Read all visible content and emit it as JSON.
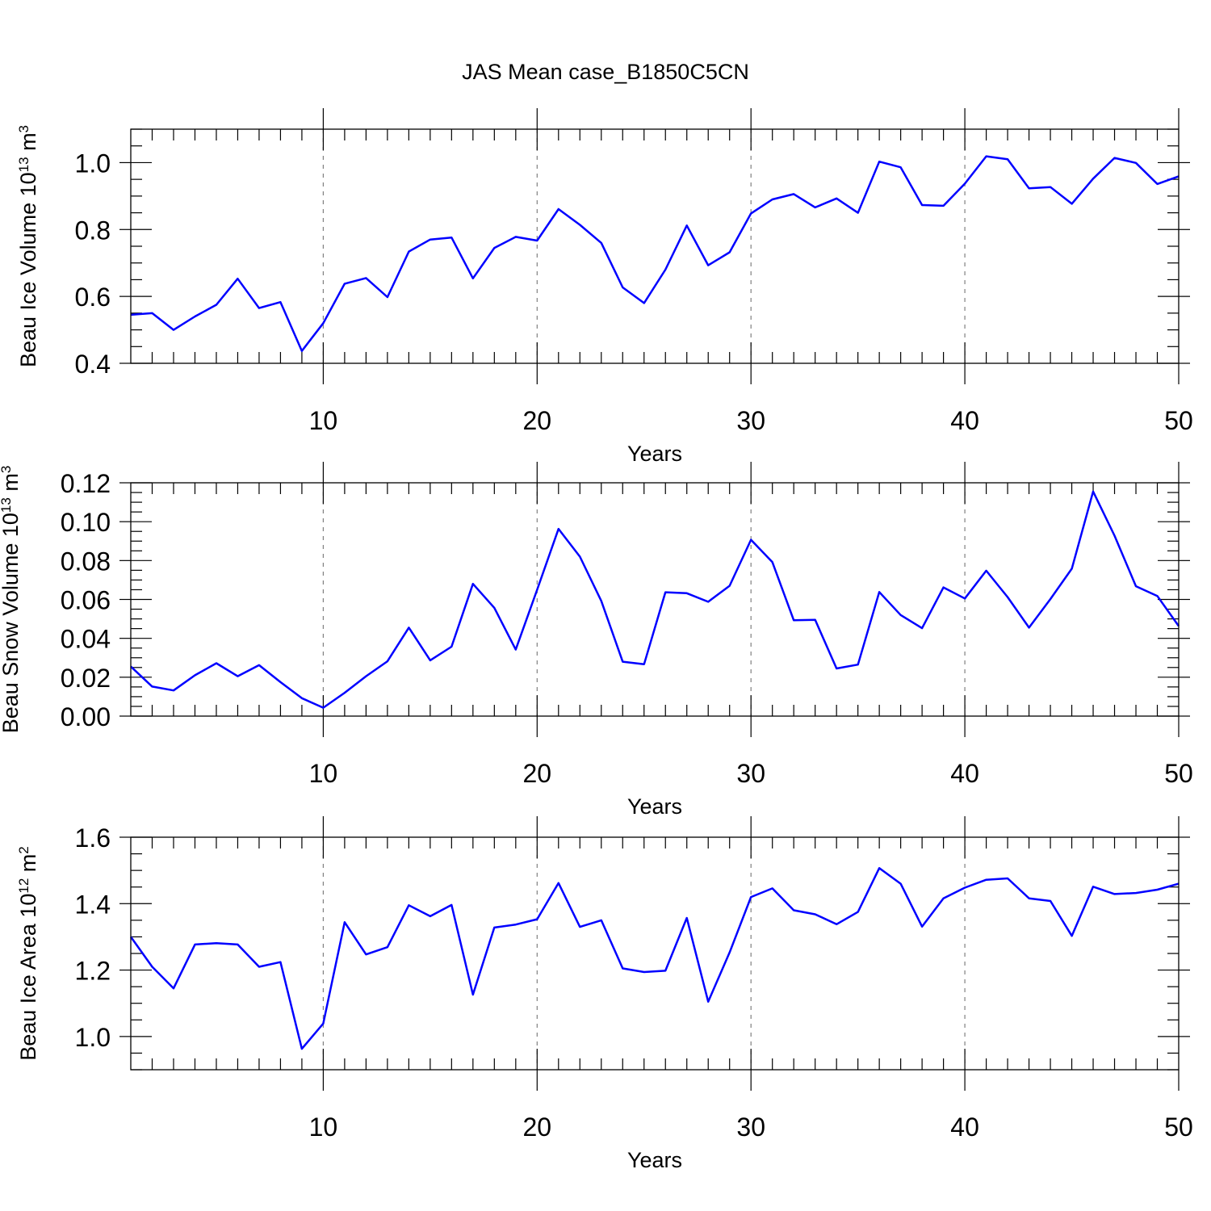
{
  "title": "JAS Mean case_B1850C5CN",
  "colors": {
    "line": "#0000ff",
    "axis": "#000000",
    "grid": "#808080"
  },
  "chart_data": [
    {
      "type": "line",
      "xlabel": "Years",
      "ylabel": "Beau Ice Volume 10",
      "ylabel_exp": "13",
      "ylabel_unit": " m",
      "ylabel_unit_exp": "3",
      "xlim": [
        1,
        50
      ],
      "ylim": [
        0.4,
        1.1
      ],
      "xticks": [
        10,
        20,
        30,
        40,
        50
      ],
      "xtick_labels": [
        "10",
        "20",
        "30",
        "40",
        "50"
      ],
      "yticks": [
        0.4,
        0.6,
        0.8,
        1.0
      ],
      "ytick_labels": [
        "0.4",
        "0.6",
        "0.8",
        "1.0"
      ],
      "yminor": 0.05,
      "grid_x": [
        10,
        20,
        30,
        40
      ],
      "x": [
        1,
        2,
        3,
        4,
        5,
        6,
        7,
        8,
        9,
        10,
        11,
        12,
        13,
        14,
        15,
        16,
        17,
        18,
        19,
        20,
        21,
        22,
        23,
        24,
        25,
        26,
        27,
        28,
        29,
        30,
        31,
        32,
        33,
        34,
        35,
        36,
        37,
        38,
        39,
        40,
        41,
        42,
        43,
        44,
        45,
        46,
        47,
        48,
        49,
        50
      ],
      "y": [
        0.545,
        0.55,
        0.5,
        0.54,
        0.575,
        0.653,
        0.565,
        0.583,
        0.437,
        0.52,
        0.638,
        0.655,
        0.598,
        0.734,
        0.77,
        0.776,
        0.654,
        0.745,
        0.778,
        0.767,
        0.861,
        0.814,
        0.76,
        0.627,
        0.58,
        0.68,
        0.812,
        0.693,
        0.732,
        0.848,
        0.89,
        0.906,
        0.866,
        0.893,
        0.85,
        1.003,
        0.986,
        0.873,
        0.871,
        0.937,
        1.019,
        1.01,
        0.923,
        0.927,
        0.877,
        0.952,
        1.014,
        0.999,
        0.936,
        0.959
      ]
    },
    {
      "type": "line",
      "xlabel": "Years",
      "ylabel": "Beau Snow Volume 10",
      "ylabel_exp": "13",
      "ylabel_unit": " m",
      "ylabel_unit_exp": "3",
      "xlim": [
        1,
        50
      ],
      "ylim": [
        0.0,
        0.12
      ],
      "xticks": [
        10,
        20,
        30,
        40,
        50
      ],
      "xtick_labels": [
        "10",
        "20",
        "30",
        "40",
        "50"
      ],
      "yticks": [
        0.0,
        0.02,
        0.04,
        0.06,
        0.08,
        0.1,
        0.12
      ],
      "ytick_labels": [
        "0.00",
        "0.02",
        "0.04",
        "0.06",
        "0.08",
        "0.10",
        "0.12"
      ],
      "yminor": 0.005,
      "grid_x": [
        10,
        20,
        30,
        40
      ],
      "x": [
        1,
        2,
        3,
        4,
        5,
        6,
        7,
        8,
        9,
        10,
        11,
        12,
        13,
        14,
        15,
        16,
        17,
        18,
        19,
        20,
        21,
        22,
        23,
        24,
        25,
        26,
        27,
        28,
        29,
        30,
        31,
        32,
        33,
        34,
        35,
        36,
        37,
        38,
        39,
        40,
        41,
        42,
        43,
        44,
        45,
        46,
        47,
        48,
        49,
        50
      ],
      "y": [
        0.0255,
        0.0152,
        0.0132,
        0.021,
        0.0272,
        0.0205,
        0.0262,
        0.0175,
        0.0092,
        0.0043,
        0.012,
        0.0205,
        0.0282,
        0.0455,
        0.0287,
        0.0357,
        0.068,
        0.0557,
        0.0342,
        0.065,
        0.0963,
        0.082,
        0.0592,
        0.028,
        0.0267,
        0.0637,
        0.0632,
        0.0588,
        0.067,
        0.0907,
        0.0792,
        0.0493,
        0.0495,
        0.0245,
        0.0265,
        0.0638,
        0.052,
        0.0452,
        0.0662,
        0.0605,
        0.0748,
        0.0612,
        0.0455,
        0.0602,
        0.0758,
        0.1155,
        0.0928,
        0.0668,
        0.0618,
        0.0463
      ]
    },
    {
      "type": "line",
      "xlabel": "Years",
      "ylabel": "Beau Ice Area 10",
      "ylabel_exp": "12",
      "ylabel_unit": " m",
      "ylabel_unit_exp": "2",
      "xlim": [
        1,
        50
      ],
      "ylim": [
        0.9,
        1.6
      ],
      "xticks": [
        10,
        20,
        30,
        40,
        50
      ],
      "xtick_labels": [
        "10",
        "20",
        "30",
        "40",
        "50"
      ],
      "yticks": [
        1.0,
        1.2,
        1.4,
        1.6
      ],
      "ytick_labels": [
        "1.0",
        "1.2",
        "1.4",
        "1.6"
      ],
      "yminor": 0.05,
      "grid_x": [
        10,
        20,
        30,
        40
      ],
      "x": [
        1,
        2,
        3,
        4,
        5,
        6,
        7,
        8,
        9,
        10,
        11,
        12,
        13,
        14,
        15,
        16,
        17,
        18,
        19,
        20,
        21,
        22,
        23,
        24,
        25,
        26,
        27,
        28,
        29,
        30,
        31,
        32,
        33,
        34,
        35,
        36,
        37,
        38,
        39,
        40,
        41,
        42,
        43,
        44,
        45,
        46,
        47,
        48,
        49,
        50
      ],
      "y": [
        1.3,
        1.21,
        1.145,
        1.277,
        1.281,
        1.277,
        1.21,
        1.224,
        0.963,
        1.039,
        1.344,
        1.247,
        1.269,
        1.395,
        1.362,
        1.396,
        1.126,
        1.328,
        1.337,
        1.353,
        1.462,
        1.33,
        1.35,
        1.205,
        1.194,
        1.198,
        1.357,
        1.105,
        1.253,
        1.42,
        1.446,
        1.38,
        1.368,
        1.338,
        1.375,
        1.507,
        1.46,
        1.331,
        1.416,
        1.448,
        1.472,
        1.476,
        1.416,
        1.408,
        1.303,
        1.451,
        1.429,
        1.432,
        1.442,
        1.46
      ]
    }
  ]
}
